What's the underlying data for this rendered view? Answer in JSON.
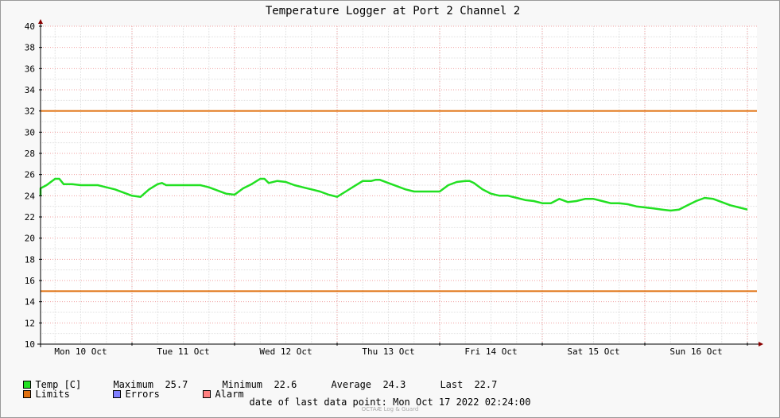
{
  "chart_data": {
    "type": "line",
    "title": "Temperature Logger at Port 2 Channel 2",
    "xlabel": "",
    "ylabel": "",
    "ylim": [
      10,
      40
    ],
    "yticks": [
      10,
      12,
      14,
      16,
      18,
      20,
      22,
      24,
      26,
      28,
      30,
      32,
      34,
      36,
      38,
      40
    ],
    "xlim": [
      0,
      168.4
    ],
    "x_unit": "hours since Mon 10 Oct 00:00",
    "xtick_labels": [
      "Mon 10 Oct",
      "Tue 11 Oct",
      "Wed 12 Oct",
      "Thu 13 Oct",
      "Fri 14 Oct",
      "Sat 15 Oct",
      "Sun 16 Oct"
    ],
    "grid": true,
    "limits": [
      32,
      15
    ],
    "series": [
      {
        "name": "Temp [C]",
        "color": "#22e022",
        "x": [
          -4,
          -2,
          0,
          2,
          4,
          6,
          7,
          8,
          10,
          12,
          14,
          16,
          18,
          20,
          22,
          24,
          26,
          28,
          30,
          31,
          32,
          34,
          36,
          38,
          40,
          42,
          44,
          46,
          48,
          50,
          52,
          54,
          55,
          56,
          58,
          60,
          62,
          64,
          66,
          68,
          70,
          72,
          74,
          76,
          78,
          80,
          81,
          82,
          84,
          86,
          88,
          90,
          92,
          94,
          96,
          98,
          100,
          102,
          103,
          104,
          106,
          108,
          110,
          112,
          114,
          116,
          118,
          120,
          122,
          124,
          126,
          128,
          130,
          132,
          134,
          136,
          138,
          140,
          142,
          144,
          146,
          148,
          150,
          152,
          154,
          156,
          158,
          160,
          162,
          164,
          166,
          168
        ],
        "y": [
          24.4,
          24.1,
          24.1,
          24.7,
          25.0,
          25.6,
          25.6,
          25.1,
          25.1,
          25.0,
          25.0,
          25.0,
          24.8,
          24.6,
          24.3,
          24.0,
          23.9,
          24.6,
          25.1,
          25.2,
          25.0,
          25.0,
          25.0,
          25.0,
          25.0,
          24.8,
          24.5,
          24.2,
          24.1,
          24.7,
          25.1,
          25.6,
          25.6,
          25.2,
          25.4,
          25.3,
          25.0,
          24.8,
          24.6,
          24.4,
          24.1,
          23.9,
          24.4,
          24.9,
          25.4,
          25.4,
          25.5,
          25.5,
          25.2,
          24.9,
          24.6,
          24.4,
          24.4,
          24.4,
          24.4,
          25.0,
          25.3,
          25.4,
          25.4,
          25.2,
          24.6,
          24.2,
          24.0,
          24.0,
          23.8,
          23.6,
          23.5,
          23.3,
          23.3,
          23.7,
          23.4,
          23.5,
          23.7,
          23.7,
          23.5,
          23.3,
          23.3,
          23.2,
          23.0,
          22.9,
          22.8,
          22.7,
          22.6,
          22.7,
          23.1,
          23.5,
          23.8,
          23.7,
          23.4,
          23.1,
          22.9,
          22.7
        ]
      },
      {
        "name": "Limits",
        "color": "#e0700f",
        "values": [
          32,
          15
        ]
      }
    ]
  },
  "legend": {
    "temp_label": "Temp [C]",
    "maximum_label": "Maximum",
    "maximum_value": "25.7",
    "minimum_label": "Minimum",
    "minimum_value": "22.6",
    "average_label": "Average",
    "average_value": "24.3",
    "last_label": "Last",
    "last_value": "22.7",
    "limits_label": "Limits",
    "errors_label": "Errors",
    "alarm_label": "Alarm",
    "temp_color": "#22e022",
    "limits_color": "#e0700f",
    "errors_color": "#7f7fff",
    "alarm_color": "#ff7f7f"
  },
  "footer": {
    "label": "date of last data point:",
    "value": "Mon Oct 17 2022 02:24:00",
    "credit": "OCTAÆ Log & Guard"
  }
}
